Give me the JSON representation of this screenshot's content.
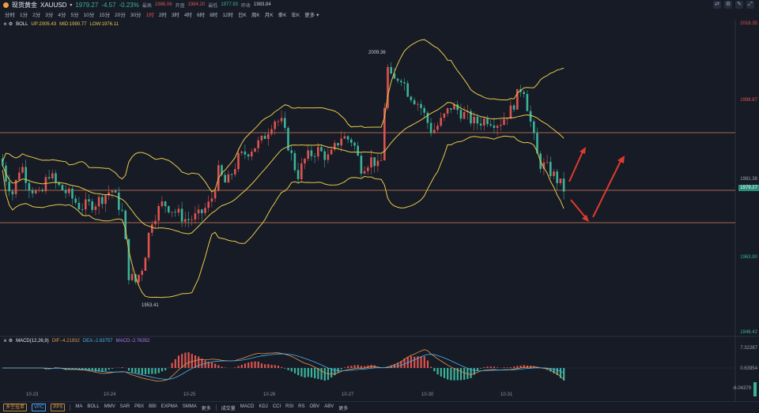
{
  "header": {
    "name": "现货黄金",
    "symbol": "XAUUSD",
    "price": "1979.27",
    "change": "-4.57",
    "change_pct": "-0.23%",
    "high_label": "最高",
    "high": "1986.06",
    "open_label": "开盘",
    "open": "1984.20",
    "low_label": "最低",
    "low": "1977.93",
    "prev_label": "昨收",
    "prev": "1983.84"
  },
  "periods": [
    "分时",
    "1分",
    "2分",
    "3分",
    "4分",
    "5分",
    "10分",
    "15分",
    "20分",
    "30分",
    "1时",
    "2时",
    "3时",
    "4时",
    "6时",
    "8时",
    "12时",
    "日K",
    "周K",
    "月K",
    "季K",
    "年K",
    "更多"
  ],
  "active_period": "1时",
  "boll": {
    "name": "BOLL",
    "up": "UP:2005.43",
    "mid": "MID:1990.77",
    "low": "LOW:1976.11"
  },
  "macd": {
    "name": "MACD(12,26,9)",
    "dif": "DIF:-4.21932",
    "dea": "DEA:-2.83757",
    "macd": "MACD:-2.76352"
  },
  "y_axis": [
    "2016.35",
    "1998.87",
    "1981.38",
    "1963.90",
    "1946.42"
  ],
  "macd_axis": [
    "7.32287",
    "0.63954",
    "-6.04379"
  ],
  "last_price_tag": "1979.27",
  "annotations": {
    "high": "2009.36",
    "low": "1953.41"
  },
  "x_axis": [
    "10-23",
    "10-24",
    "10-25",
    "10-26",
    "10-27",
    "10-30",
    "10-31"
  ],
  "bottom": {
    "btn1": "多空挂单",
    "btn2": "VPC",
    "btn3": "PPS",
    "indicators": [
      "MA",
      "BOLL",
      "MMV",
      "SAR",
      "PBX",
      "BBI",
      "EXPMA",
      "SMMA",
      "更多"
    ],
    "sub_indicators": [
      "成交量",
      "MACD",
      "KDJ",
      "CCI",
      "RSI",
      "RS",
      "OBV",
      "ABV",
      "更多"
    ]
  },
  "colors": {
    "up": "#e0534f",
    "down": "#3bb39a",
    "boll": "#e9c84a",
    "hline": "#d9845a"
  }
}
